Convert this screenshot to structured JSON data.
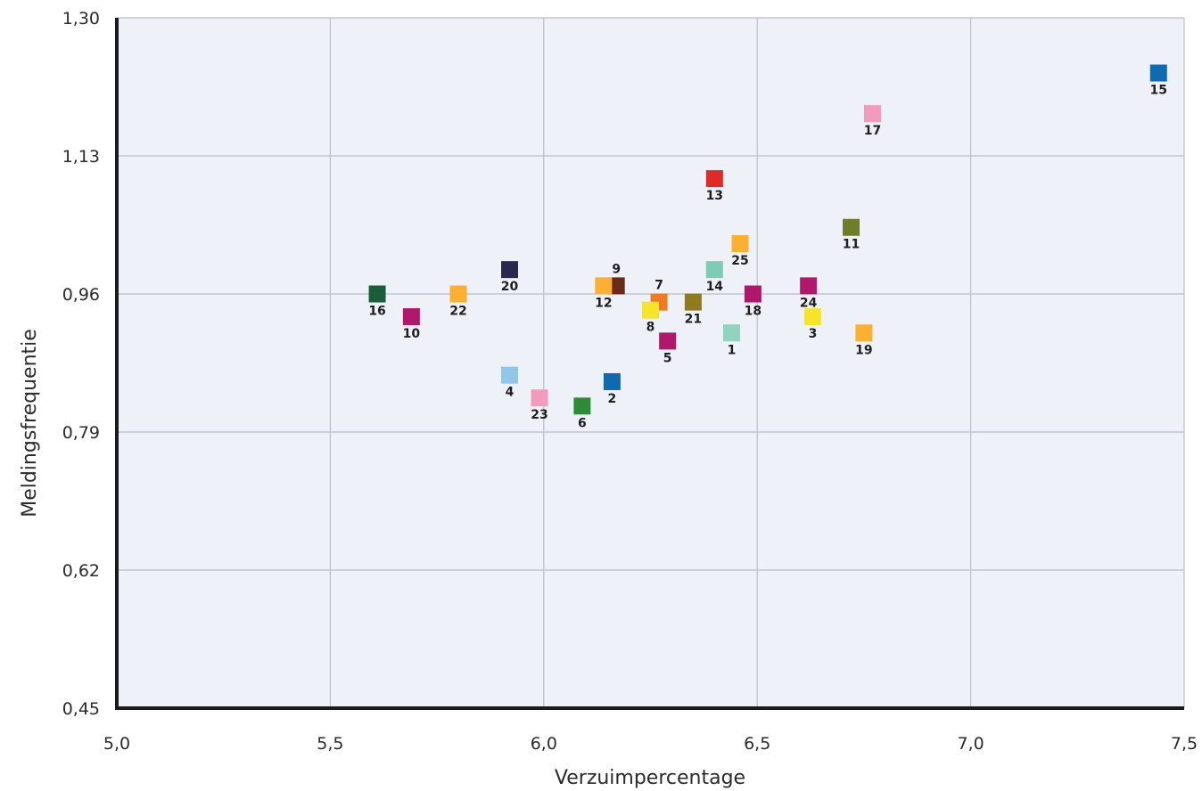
{
  "chart_data": {
    "type": "scatter",
    "title": "",
    "xlabel": "Verzuimpercentage",
    "ylabel": "Meldingsfrequentie",
    "xlim": [
      5.0,
      7.5
    ],
    "ylim": [
      0.45,
      1.3
    ],
    "x_ticks": [
      5.0,
      5.5,
      6.0,
      6.5,
      7.0,
      7.5
    ],
    "x_tick_labels": [
      "5,0",
      "5,5",
      "6,0",
      "6,5",
      "7,0",
      "7,5"
    ],
    "y_ticks": [
      0.45,
      0.62,
      0.79,
      0.96,
      1.13,
      1.3
    ],
    "y_tick_labels": [
      "0,45",
      "0,62",
      "0,79",
      "0,96",
      "1,13",
      "1,30"
    ],
    "grid": true,
    "plot_background": "#eef2f8",
    "grid_color": "#b9bec6",
    "axis_color": "#1a1a1a",
    "points": [
      {
        "label": "1",
        "x": 6.44,
        "y": 0.912,
        "color": "#8fd3c1",
        "label_pos": "below"
      },
      {
        "label": "2",
        "x": 6.16,
        "y": 0.852,
        "color": "#0e6bb0",
        "label_pos": "below"
      },
      {
        "label": "3",
        "x": 6.63,
        "y": 0.932,
        "color": "#f5e42a",
        "label_pos": "below"
      },
      {
        "label": "4",
        "x": 5.92,
        "y": 0.86,
        "color": "#8fc6ea",
        "label_pos": "below"
      },
      {
        "label": "5",
        "x": 6.29,
        "y": 0.902,
        "color": "#b0196b",
        "label_pos": "below"
      },
      {
        "label": "6",
        "x": 6.09,
        "y": 0.822,
        "color": "#2e8b3a",
        "label_pos": "below"
      },
      {
        "label": "7",
        "x": 6.27,
        "y": 0.95,
        "color": "#ee7a22",
        "label_pos": "above"
      },
      {
        "label": "8",
        "x": 6.25,
        "y": 0.94,
        "color": "#f5e42a",
        "label_pos": "below"
      },
      {
        "label": "9",
        "x": 6.17,
        "y": 0.97,
        "color": "#6a2b17",
        "label_pos": "above"
      },
      {
        "label": "10",
        "x": 5.69,
        "y": 0.932,
        "color": "#b0196b",
        "label_pos": "below"
      },
      {
        "label": "11",
        "x": 6.72,
        "y": 1.042,
        "color": "#6f7c2a",
        "label_pos": "below"
      },
      {
        "label": "12",
        "x": 6.14,
        "y": 0.97,
        "color": "#fbb032",
        "label_pos": "below"
      },
      {
        "label": "13",
        "x": 6.4,
        "y": 1.102,
        "color": "#df2a28",
        "label_pos": "below"
      },
      {
        "label": "14",
        "x": 6.4,
        "y": 0.99,
        "color": "#7fcbb4",
        "label_pos": "below"
      },
      {
        "label": "15",
        "x": 7.44,
        "y": 1.232,
        "color": "#0e6bb0",
        "label_pos": "below"
      },
      {
        "label": "16",
        "x": 5.61,
        "y": 0.96,
        "color": "#1b5e3b",
        "label_pos": "below"
      },
      {
        "label": "17",
        "x": 6.77,
        "y": 1.182,
        "color": "#f19cbc",
        "label_pos": "below"
      },
      {
        "label": "18",
        "x": 6.49,
        "y": 0.96,
        "color": "#b0196b",
        "label_pos": "below"
      },
      {
        "label": "19",
        "x": 6.75,
        "y": 0.912,
        "color": "#fbb032",
        "label_pos": "below"
      },
      {
        "label": "20",
        "x": 5.92,
        "y": 0.99,
        "color": "#2a2850",
        "label_pos": "below"
      },
      {
        "label": "21",
        "x": 6.35,
        "y": 0.95,
        "color": "#8f7a1e",
        "label_pos": "below"
      },
      {
        "label": "22",
        "x": 5.8,
        "y": 0.96,
        "color": "#fbb032",
        "label_pos": "below"
      },
      {
        "label": "23",
        "x": 5.99,
        "y": 0.832,
        "color": "#f19cbc",
        "label_pos": "below"
      },
      {
        "label": "24",
        "x": 6.62,
        "y": 0.97,
        "color": "#b0196b",
        "label_pos": "below"
      },
      {
        "label": "25",
        "x": 6.46,
        "y": 1.022,
        "color": "#fbb032",
        "label_pos": "below"
      }
    ]
  }
}
